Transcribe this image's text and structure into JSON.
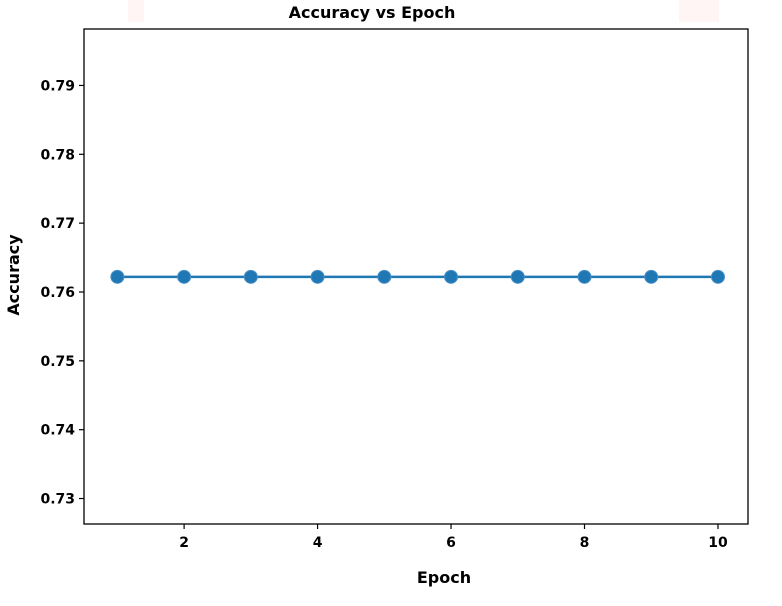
{
  "chart_data": {
    "type": "line",
    "title": "Accuracy vs Epoch",
    "xlabel": "Epoch",
    "ylabel": "Accuracy",
    "xlim": [
      0.5,
      10.45
    ],
    "ylim": [
      0.7263,
      0.7982
    ],
    "x_ticks": [
      2,
      4,
      6,
      8,
      10
    ],
    "y_ticks": [
      0.73,
      0.74,
      0.75,
      0.76,
      0.77,
      0.78,
      0.79
    ],
    "grid": false,
    "series": [
      {
        "x": [
          1,
          2,
          3,
          4,
          5,
          6,
          7,
          8,
          9,
          10
        ],
        "values": [
          0.7622,
          0.7622,
          0.7622,
          0.7622,
          0.7622,
          0.7622,
          0.7622,
          0.7622,
          0.7622,
          0.7622
        ],
        "color": "#1f77b4",
        "marker": "circle"
      }
    ]
  }
}
